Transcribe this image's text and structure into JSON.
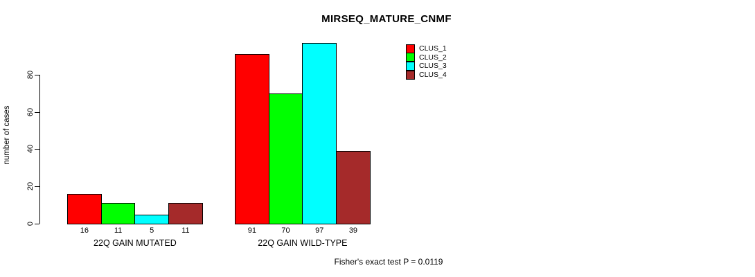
{
  "chart_data": {
    "type": "bar",
    "title": "MIRSEQ_MATURE_CNMF",
    "xlabel": "",
    "ylabel": "number of cases",
    "categories": [
      "22Q GAIN MUTATED",
      "22Q GAIN WILD-TYPE"
    ],
    "series": [
      {
        "name": "CLUS_1",
        "color": "#ff0000",
        "values": [
          16,
          91
        ]
      },
      {
        "name": "CLUS_2",
        "color": "#00ff00",
        "values": [
          11,
          70
        ]
      },
      {
        "name": "CLUS_3",
        "color": "#00ffff",
        "values": [
          5,
          97
        ]
      },
      {
        "name": "CLUS_4",
        "color": "#a52a2a",
        "values": [
          11,
          39
        ]
      }
    ],
    "yticks": [
      0,
      20,
      40,
      60,
      80
    ],
    "ylim": [
      0,
      98
    ],
    "grid": false,
    "bar_value_labels": true,
    "legend_position": "top-right",
    "annotation": "Fisher's exact test P = 0.0119"
  },
  "colors": {
    "background": "#ffffff",
    "axis": "#000000",
    "clus_1": "#ff0000",
    "clus_2": "#00ff00",
    "clus_3": "#00ffff",
    "clus_4": "#a52a2a"
  }
}
